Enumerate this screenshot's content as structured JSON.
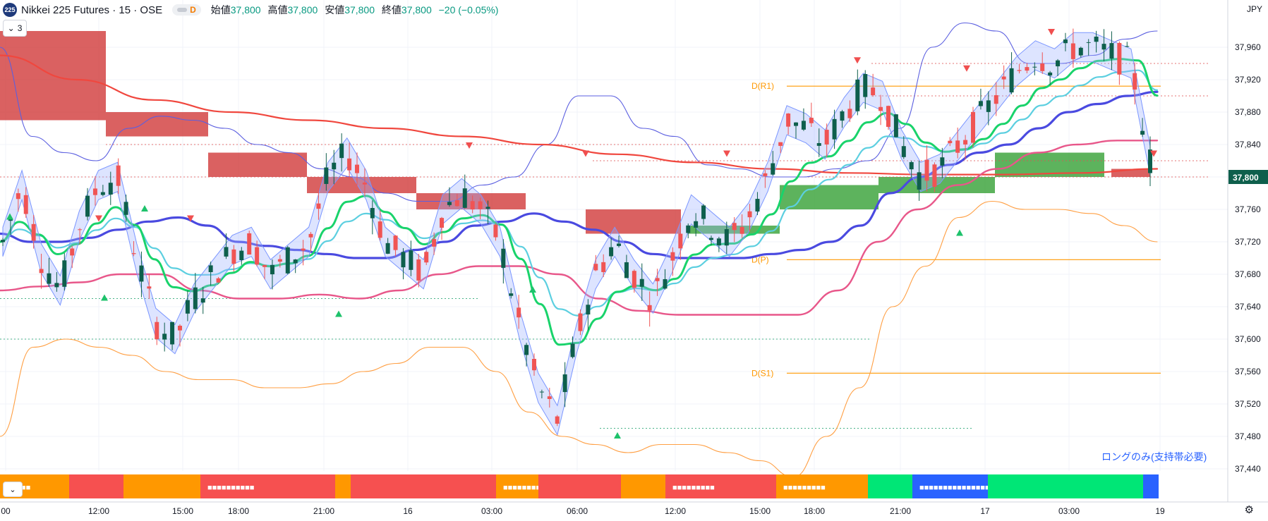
{
  "header": {
    "symbol_badge": "225",
    "title": "Nikkei 225 Futures · 15 · OSE",
    "session_badge": "D",
    "open_label": "始値",
    "open_value": "37,800",
    "high_label": "高値",
    "high_value": "37,800",
    "low_label": "安値",
    "low_value": "37,800",
    "close_label": "終値",
    "close_value": "37,800",
    "change_text": "−20 (−0.05%)",
    "indicator_count": "3"
  },
  "currency": "JPY",
  "last_price_label": "37,800",
  "annotation_text": "ロングのみ(支持帯必要)",
  "pivot_labels": [
    "D(R1)",
    "D(P)",
    "D(S1)"
  ],
  "colors": {
    "up": "#0e5f4c",
    "down": "#f05454",
    "bb_outer": "#5b5fe0",
    "bb_lower": "#ff9f43",
    "ema_fast": "#5ccfe0",
    "ema_green": "#19d36b",
    "ema_blue": "#4a4ae0",
    "ema_pink": "#e8578a",
    "ema_red": "#f0473e",
    "pivot": "#ff9800",
    "zone_red": "#d03434",
    "zone_green": "#2f9e2f"
  },
  "chart_data": {
    "type": "candlestick",
    "title": "Nikkei 225 Futures · 15 · OSE",
    "x_ticks": [
      "00",
      "12:00",
      "15:00",
      "18:00",
      "21:00",
      "16",
      "03:00",
      "06:00",
      "12:00",
      "15:00",
      "18:00",
      "21:00",
      "17",
      "03:00",
      "19"
    ],
    "y_ticks": [
      37440,
      37480,
      37520,
      37560,
      37600,
      37640,
      37680,
      37720,
      37760,
      37800,
      37840,
      37880,
      37920,
      37960
    ],
    "ylim": [
      37425,
      37985
    ],
    "last_price": 37800,
    "pivots": {
      "D(R1)": 37912,
      "D(P)": 37698,
      "D(S1)": 37558
    },
    "close_path": [
      37720,
      37790,
      37700,
      37660,
      37740,
      37790,
      37800,
      37700,
      37620,
      37600,
      37650,
      37680,
      37710,
      37720,
      37680,
      37700,
      37720,
      37800,
      37830,
      37790,
      37720,
      37700,
      37680,
      37760,
      37780,
      37760,
      37720,
      37620,
      37540,
      37500,
      37600,
      37680,
      37720,
      37680,
      37650,
      37700,
      37760,
      37740,
      37720,
      37750,
      37800,
      37870,
      37860,
      37840,
      37880,
      37910,
      37900,
      37840,
      37800,
      37810,
      37840,
      37870,
      37900,
      37930,
      37950,
      37940,
      37960,
      37960,
      37950,
      37940,
      37820
    ],
    "bb_upper": [
      37960,
      37850,
      37830,
      37820,
      37860,
      37875,
      37870,
      37860,
      37840,
      37830,
      37810,
      37800,
      37780,
      37770,
      37770,
      37790,
      37800,
      37840,
      37900,
      37900,
      37860,
      37850,
      37815,
      37810,
      37800,
      37800,
      37810,
      37820,
      37860,
      37960,
      37990,
      37980,
      37940,
      37940,
      37950,
      37970,
      37980
    ],
    "bb_lower": [
      37480,
      37590,
      37600,
      37590,
      37580,
      37560,
      37550,
      37550,
      37540,
      37540,
      37545,
      37560,
      37570,
      37590,
      37590,
      37560,
      37510,
      37480,
      37470,
      37460,
      37470,
      37470,
      37460,
      37450,
      37430,
      37480,
      37540,
      37640,
      37690,
      37750,
      37770,
      37760,
      37760,
      37755,
      37740,
      37720
    ],
    "ema_blue": [
      37730,
      37720,
      37720,
      37725,
      37735,
      37745,
      37750,
      37740,
      37720,
      37715,
      37710,
      37705,
      37700,
      37700,
      37710,
      37720,
      37740,
      37745,
      37755,
      37745,
      37735,
      37720,
      37705,
      37700,
      37700,
      37700,
      37705,
      37710,
      37720,
      37740,
      37780,
      37800,
      37815,
      37830,
      37840,
      37860,
      37880,
      37890,
      37900,
      37905
    ],
    "ema_pink": [
      37660,
      37665,
      37670,
      37680,
      37680,
      37660,
      37650,
      37650,
      37655,
      37650,
      37660,
      37680,
      37690,
      37690,
      37680,
      37650,
      37635,
      37630,
      37630,
      37630,
      37630,
      37660,
      37720,
      37760,
      37790,
      37810,
      37830,
      37840,
      37845,
      37845
    ],
    "ema_red": [
      37950,
      37920,
      37895,
      37880,
      37870,
      37860,
      37850,
      37840,
      37828,
      37818,
      37810,
      37805,
      37803,
      37803,
      37805,
      37810
    ],
    "zones_resistance": [
      [
        0,
        37870,
        37980
      ],
      [
        1,
        37850,
        37880
      ],
      [
        2,
        37800,
        37830
      ],
      [
        3,
        37780,
        37800
      ],
      [
        4,
        37760,
        37780
      ],
      [
        5,
        37730,
        37760
      ],
      [
        6,
        37800,
        37810
      ]
    ],
    "zones_support": [
      [
        0,
        37730,
        37740
      ],
      [
        1,
        37760,
        37790
      ],
      [
        2,
        37780,
        37800
      ],
      [
        3,
        37810,
        37830
      ]
    ],
    "signal_bar": [
      {
        "color": "#ff9800",
        "label": "■■■■■"
      },
      {
        "color": "#f65050",
        "label": ""
      },
      {
        "color": "#ff9800",
        "label": ""
      },
      {
        "color": "#f65050",
        "label": "■■■■■■■■■■"
      },
      {
        "color": "#ff9800",
        "label": ""
      },
      {
        "color": "#f65050",
        "label": ""
      },
      {
        "color": "#ff9800",
        "label": "■■■■■■■■■■■■■■"
      },
      {
        "color": "#f65050",
        "label": ""
      },
      {
        "color": "#ff9800",
        "label": ""
      },
      {
        "color": "#f65050",
        "label": "■■■■■■■■■"
      },
      {
        "color": "#ff9800",
        "label": "■■■■■■■■■"
      },
      {
        "color": "#00e676",
        "label": ""
      },
      {
        "color": "#2962ff",
        "label": "■■■■■■■■■■■■■■■"
      },
      {
        "color": "#00e676",
        "label": ""
      },
      {
        "color": "#2962ff",
        "label": ""
      }
    ]
  }
}
